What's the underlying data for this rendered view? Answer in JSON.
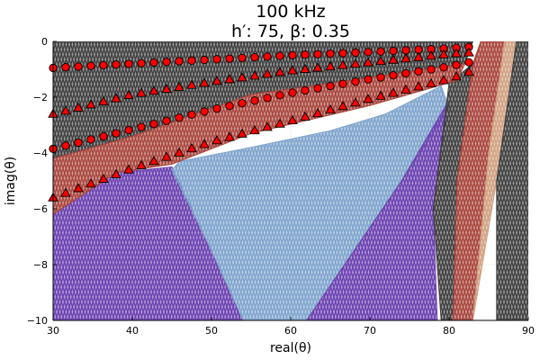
{
  "chart_data": {
    "type": "scatter",
    "title": "100 kHz",
    "subtitle": "h′: 75, β: 0.35",
    "xlabel": "real(θ)",
    "ylabel": "imag(θ)",
    "xlim": [
      30,
      90
    ],
    "ylim": [
      -10,
      0
    ],
    "x_ticks": [
      "30",
      "40",
      "50",
      "60",
      "70",
      "80",
      "90"
    ],
    "y_ticks": [
      "0",
      "−2",
      "−4",
      "−6",
      "−8",
      "−10"
    ],
    "grid": true,
    "legend": "none",
    "colors": {
      "purple": "#6a3fb0",
      "blue": "#7ea3cc",
      "brown": "#a8443b",
      "dark": "#3e3e3e",
      "tan": "#d0a080",
      "marker": "#ff0000"
    },
    "regions": [
      {
        "color": "purple",
        "polygon": [
          [
            30,
            -10
          ],
          [
            54,
            -10
          ],
          [
            50,
            -7.5
          ],
          [
            45,
            -4.5
          ],
          [
            38,
            -4.7
          ],
          [
            30,
            -6.2
          ]
        ]
      },
      {
        "color": "blue",
        "polygon": [
          [
            46,
            -4.3
          ],
          [
            55,
            -3.8
          ],
          [
            65,
            -3.2
          ],
          [
            72,
            -2.6
          ],
          [
            79,
            -1.6
          ],
          [
            80,
            -2.4
          ],
          [
            74,
            -5
          ],
          [
            68,
            -7.5
          ],
          [
            62,
            -10
          ],
          [
            54,
            -10
          ],
          [
            50,
            -7.5
          ],
          [
            45,
            -4.6
          ]
        ]
      },
      {
        "color": "purple",
        "polygon": [
          [
            62,
            -10
          ],
          [
            68,
            -7.5
          ],
          [
            74,
            -5
          ],
          [
            79.8,
            -2.2
          ],
          [
            78,
            -6
          ],
          [
            78.5,
            -10
          ]
        ]
      },
      {
        "color": "dark",
        "polygon": [
          [
            79,
            -10
          ],
          [
            78,
            -6
          ],
          [
            80,
            -1.5
          ],
          [
            83,
            -0.8
          ],
          [
            81,
            -5
          ],
          [
            80.5,
            -10
          ]
        ]
      },
      {
        "color": "brown",
        "polygon": [
          [
            80.5,
            -10
          ],
          [
            81,
            -5
          ],
          [
            83,
            -0.8
          ],
          [
            84,
            0
          ],
          [
            87,
            0
          ],
          [
            85,
            -4
          ],
          [
            84,
            -7
          ],
          [
            83,
            -10
          ]
        ]
      },
      {
        "color": "tan",
        "polygon": [
          [
            83,
            -10
          ],
          [
            84,
            -7
          ],
          [
            85,
            -4
          ],
          [
            87,
            0
          ],
          [
            88.5,
            0
          ],
          [
            86,
            -5
          ]
        ]
      },
      {
        "color": "dark",
        "polygon": [
          [
            86,
            -5
          ],
          [
            88.5,
            0
          ],
          [
            90,
            0
          ],
          [
            90,
            -10
          ],
          [
            86,
            -10
          ]
        ]
      },
      {
        "color": "dark",
        "polygon": [
          [
            30,
            0
          ],
          [
            83,
            0
          ],
          [
            82,
            -0.8
          ],
          [
            70,
            -1.3
          ],
          [
            55,
            -1.9
          ],
          [
            40,
            -3.4
          ],
          [
            30,
            -4.2
          ]
        ]
      },
      {
        "color": "brown",
        "polygon": [
          [
            30,
            -4.2
          ],
          [
            40,
            -3.4
          ],
          [
            55,
            -1.9
          ],
          [
            70,
            -1.3
          ],
          [
            82,
            -0.8
          ],
          [
            81,
            -1.4
          ],
          [
            70,
            -2.3
          ],
          [
            55,
            -3.3
          ],
          [
            45,
            -4.4
          ],
          [
            38,
            -4.7
          ],
          [
            30,
            -6.2
          ]
        ]
      }
    ],
    "series": [
      {
        "marker": "circle",
        "x": [
          30,
          40,
          50,
          60,
          70,
          80,
          82.5
        ],
        "y": [
          -0.95,
          -0.8,
          -0.65,
          -0.5,
          -0.38,
          -0.25,
          -0.2
        ]
      },
      {
        "marker": "triangle",
        "x": [
          30,
          40,
          50,
          60,
          70,
          80,
          82.5
        ],
        "y": [
          -2.6,
          -1.9,
          -1.45,
          -1.05,
          -0.75,
          -0.45,
          -0.4
        ]
      },
      {
        "marker": "circle",
        "x": [
          30,
          40,
          50,
          60,
          70,
          80,
          82.5
        ],
        "y": [
          -3.85,
          -3.15,
          -2.45,
          -1.85,
          -1.35,
          -0.9,
          -0.75
        ]
      },
      {
        "marker": "triangle",
        "x": [
          30,
          40,
          50,
          60,
          70,
          80,
          82.5
        ],
        "y": [
          -5.6,
          -4.55,
          -3.6,
          -2.85,
          -2.05,
          -1.35,
          -1.1
        ]
      }
    ]
  }
}
